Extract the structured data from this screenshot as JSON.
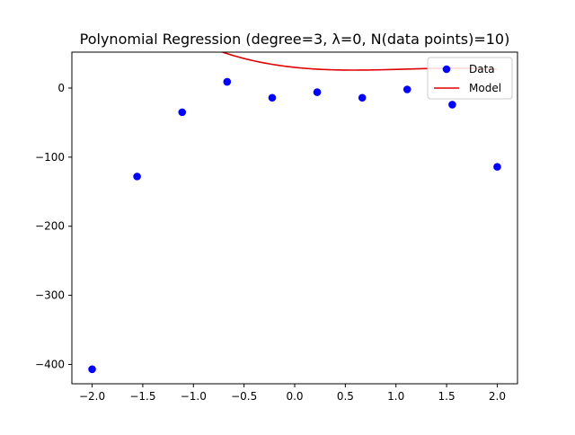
{
  "chart_data": {
    "type": "scatter",
    "title": "Polynomial Regression (degree=3, λ=0, N(data points)=10)",
    "xlabel": "",
    "ylabel": "",
    "xlim": [
      -2.2,
      2.2
    ],
    "ylim": [
      -428,
      52
    ],
    "x_ticks": [
      -2.0,
      -1.5,
      -1.0,
      -0.5,
      0.0,
      0.5,
      1.0,
      1.5,
      2.0
    ],
    "x_tick_labels": [
      "−2.0",
      "−1.5",
      "−1.0",
      "−0.5",
      "0.0",
      "0.5",
      "1.0",
      "1.5",
      "2.0"
    ],
    "y_ticks": [
      -400,
      -300,
      -200,
      -100,
      0
    ],
    "y_tick_labels": [
      "−400",
      "−300",
      "−200",
      "−100",
      "0"
    ],
    "grid": false,
    "legend_position": "top-right",
    "series": [
      {
        "name": "Data",
        "kind": "scatter",
        "color": "#0000ff",
        "x": [
          -2.0,
          -1.556,
          -1.111,
          -0.667,
          -0.222,
          0.222,
          0.667,
          1.111,
          1.556,
          2.0
        ],
        "y": [
          -407,
          -128,
          -35,
          9,
          -14,
          -6,
          -14,
          -2,
          -24,
          -114
        ]
      },
      {
        "name": "Model",
        "kind": "line",
        "color": "#e00000",
        "polynomial_coefficients": [
          -5.5,
          17.95,
          -15.4,
          29.95
        ],
        "x_range": [
          -2.0,
          2.0
        ]
      }
    ]
  }
}
